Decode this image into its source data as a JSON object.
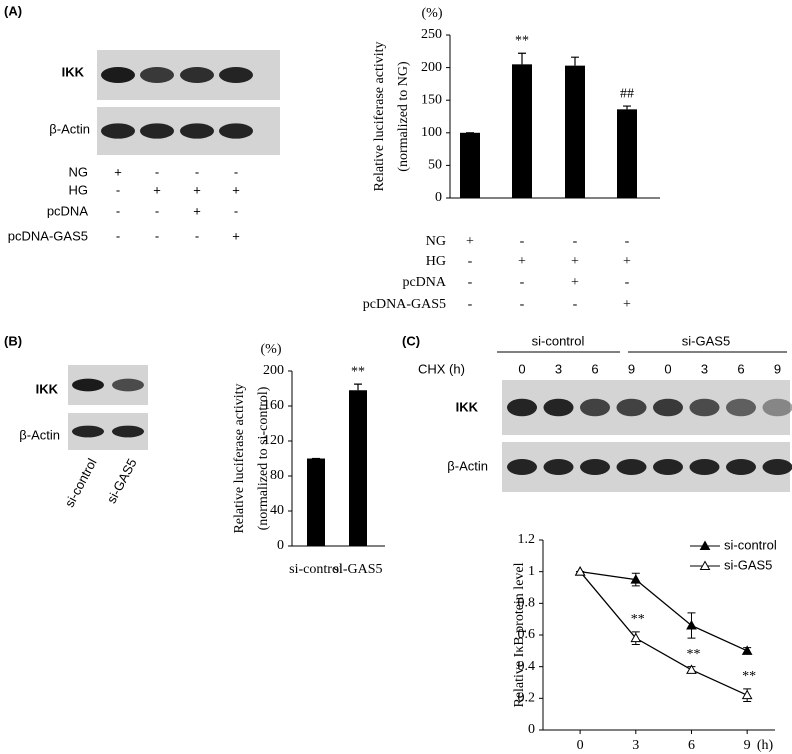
{
  "panels": [
    "(A)",
    "(B)",
    "(C)"
  ],
  "blots": {
    "A": {
      "rows": [
        "IKK",
        "β-Actin"
      ],
      "conditions": [
        {
          "label": "NG",
          "signs": [
            "+",
            "-",
            "-",
            "-"
          ]
        },
        {
          "label": "HG",
          "signs": [
            "-",
            "+",
            "+",
            "+"
          ]
        },
        {
          "label": "pcDNA",
          "signs": [
            "-",
            "-",
            "+",
            "-"
          ]
        },
        {
          "label": "pcDNA-GAS5",
          "signs": [
            "-",
            "-",
            "-",
            "+"
          ]
        }
      ]
    },
    "B": {
      "rows": [
        "IKK",
        "β-Actin"
      ],
      "lanes": [
        "si-control",
        "si-GAS5"
      ]
    },
    "C": {
      "rows": [
        "IKK",
        "β-Actin"
      ],
      "groups": [
        "si-control",
        "si-GAS5"
      ],
      "time_label": "CHX (h)",
      "times": [
        "0",
        "3",
        "6",
        "9",
        "0",
        "3",
        "6",
        "9"
      ]
    }
  },
  "chart_data": [
    {
      "type": "bar",
      "ylabel": "Relative luciferase activity",
      "ylabel_note": "(normalized to NG)",
      "yunit": "(%)",
      "categories": [
        null,
        null,
        null,
        null
      ],
      "values": [
        100,
        205,
        203,
        136
      ],
      "errors": [
        0,
        17,
        13,
        5
      ],
      "annotations": [
        null,
        "**",
        null,
        "##"
      ],
      "color": "#000000",
      "ylim": [
        0,
        250
      ],
      "yticks": [
        0,
        50,
        100,
        150,
        200,
        250
      ],
      "conditions": [
        {
          "label": "NG",
          "signs": [
            "+",
            "-",
            "-",
            "-"
          ]
        },
        {
          "label": "HG",
          "signs": [
            "-",
            "+",
            "+",
            "+"
          ]
        },
        {
          "label": "pcDNA",
          "signs": [
            "-",
            "-",
            "+",
            "-"
          ]
        },
        {
          "label": "pcDNA-GAS5",
          "signs": [
            "-",
            "-",
            "-",
            "+"
          ]
        }
      ]
    },
    {
      "type": "bar",
      "ylabel": "Relative luciferase activity",
      "ylabel_note": "(normalized to si-control)",
      "yunit": "(%)",
      "categories": [
        "si-control",
        "si-GAS5"
      ],
      "values": [
        100,
        178
      ],
      "errors": [
        0,
        7
      ],
      "annotations": [
        null,
        "**"
      ],
      "color": "#000000",
      "ylim": [
        0,
        200
      ],
      "yticks": [
        0,
        40,
        80,
        120,
        160,
        200
      ]
    },
    {
      "type": "line",
      "ylabel": "Relative IκB protein level",
      "xunit": "(h)",
      "x": [
        0,
        3,
        6,
        9
      ],
      "xlim": [
        -2,
        10.5
      ],
      "xticks": [
        0,
        3,
        6,
        9
      ],
      "ylim": [
        0,
        1.2
      ],
      "yticks": [
        0,
        0.2,
        0.4,
        0.6,
        0.8,
        1,
        1.2
      ],
      "legend": "upper right",
      "series": [
        {
          "name": "si-control",
          "color": "#000000",
          "marker_fill": "#000000",
          "values": [
            1,
            0.95,
            0.66,
            0.5
          ],
          "errors": [
            0,
            0.04,
            0.08,
            0.02
          ],
          "annotations": [
            null,
            null,
            null,
            null
          ]
        },
        {
          "name": "si-GAS5",
          "color": "#000000",
          "marker_fill": "#ffffff",
          "values": [
            1,
            0.58,
            0.38,
            0.22
          ],
          "errors": [
            0,
            0.04,
            0.02,
            0.04
          ],
          "annotations": [
            null,
            "**",
            "**",
            "**"
          ]
        }
      ]
    }
  ]
}
